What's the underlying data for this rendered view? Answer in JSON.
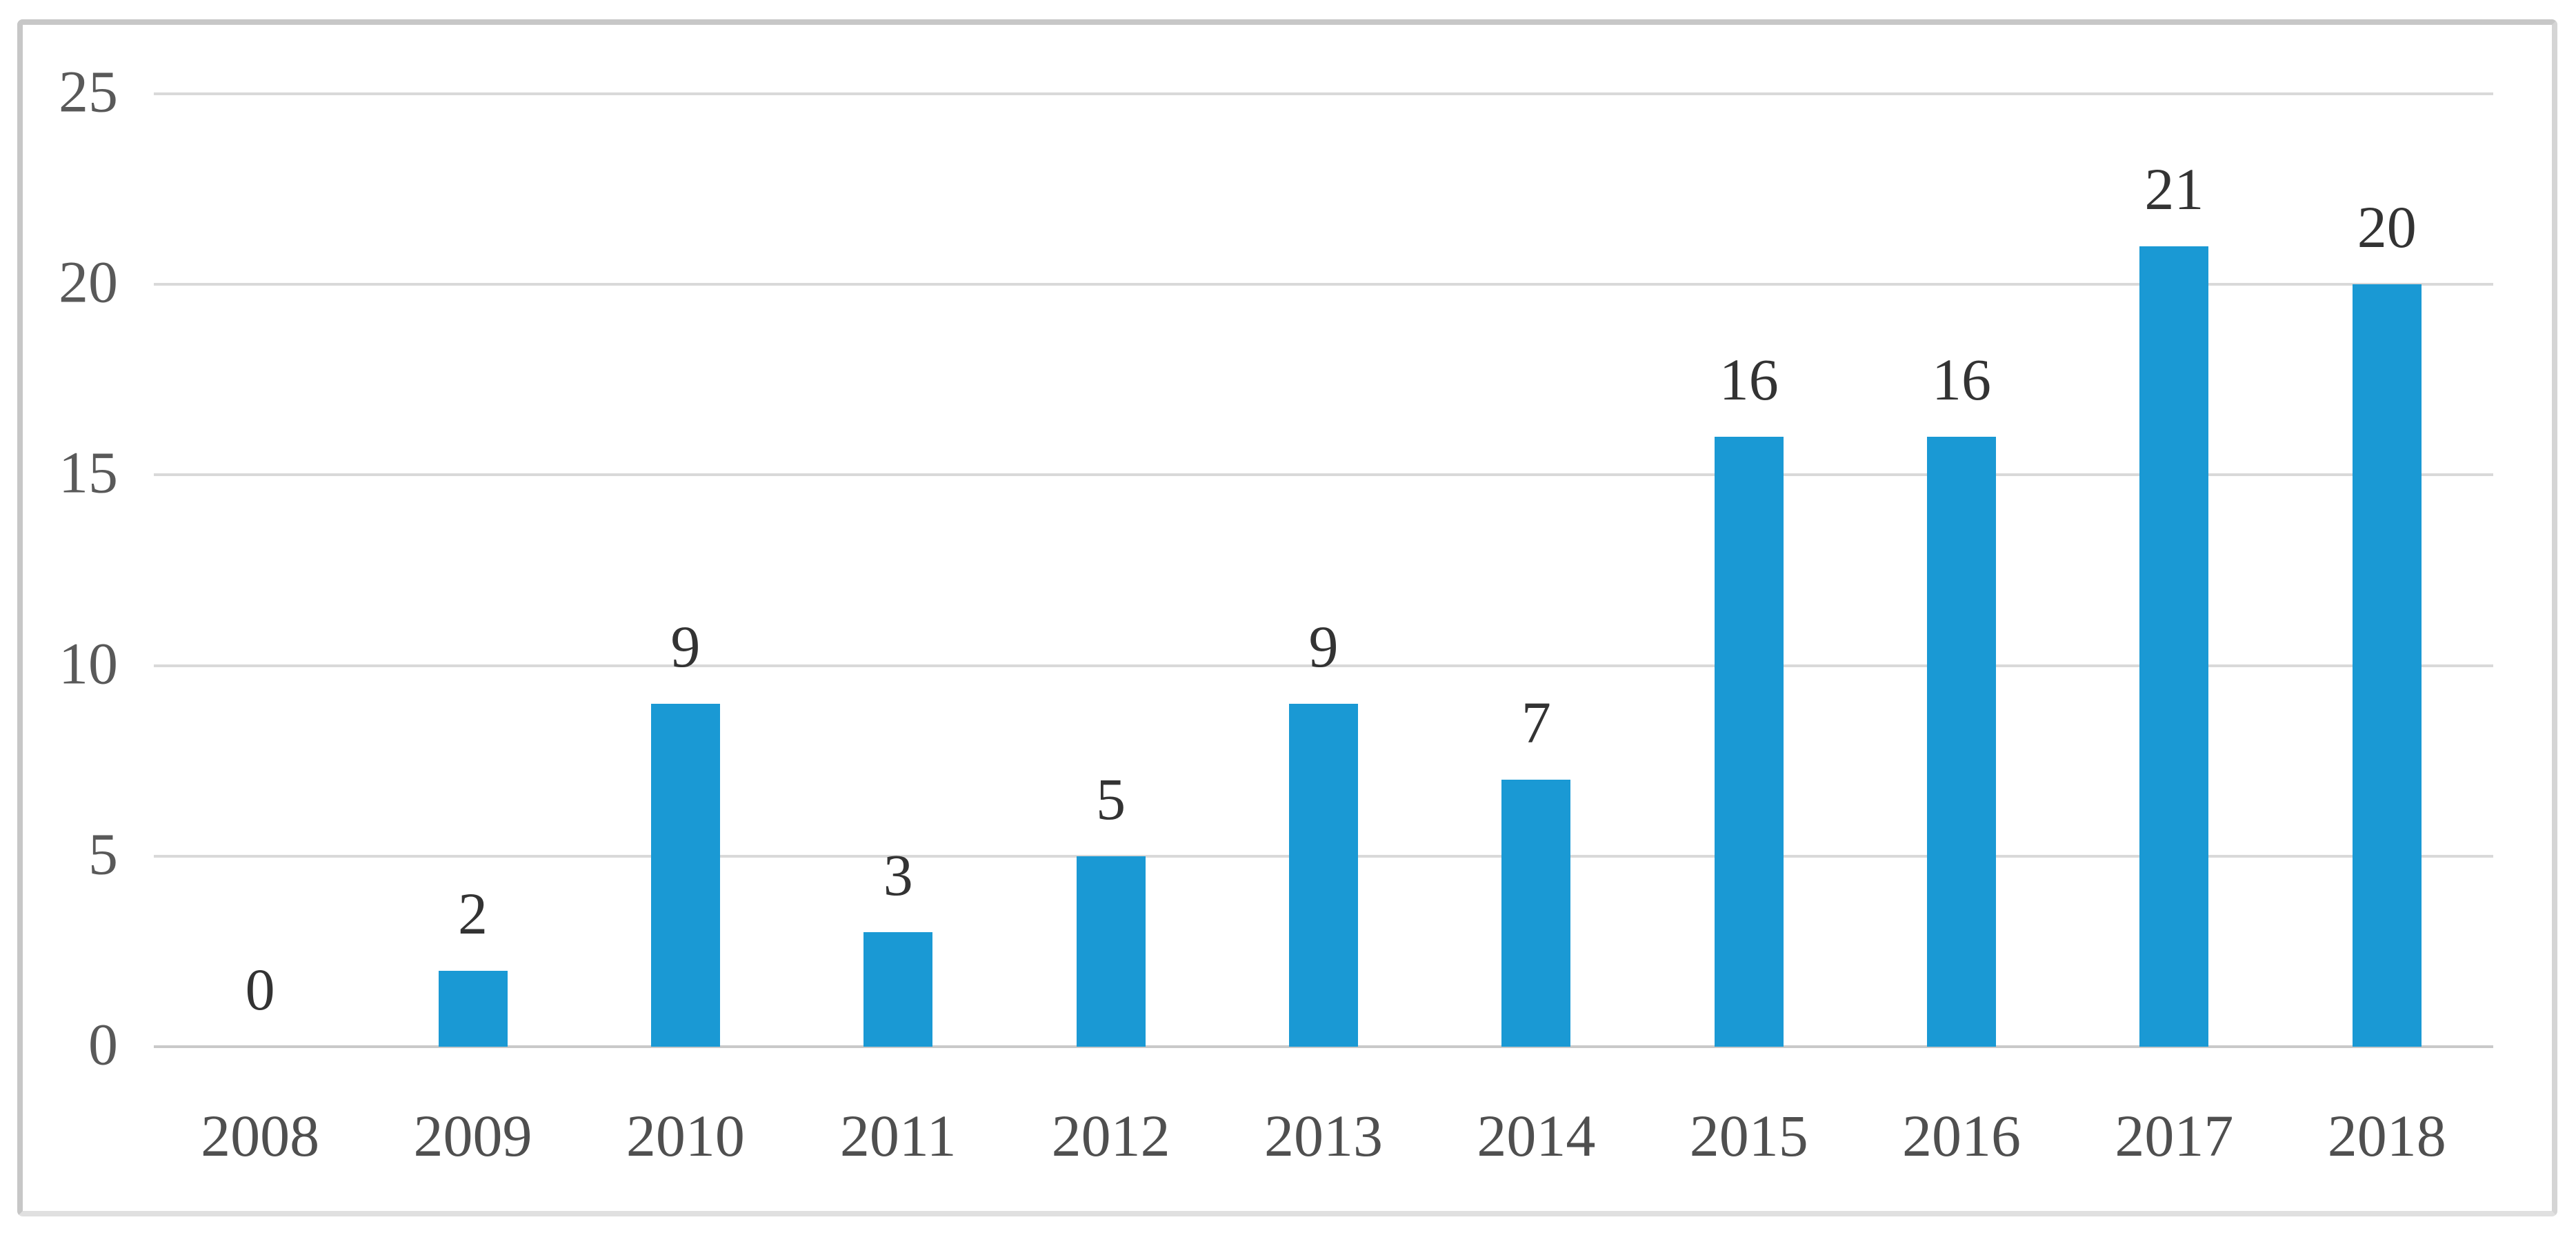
{
  "chart_data": {
    "type": "bar",
    "categories": [
      "2008",
      "2009",
      "2010",
      "2011",
      "2012",
      "2013",
      "2014",
      "2015",
      "2016",
      "2017",
      "2018"
    ],
    "values": [
      0,
      2,
      9,
      3,
      5,
      9,
      7,
      16,
      16,
      21,
      20
    ],
    "data_labels": [
      "0",
      "2",
      "9",
      "3",
      "5",
      "9",
      "7",
      "16",
      "16",
      "21",
      "20"
    ],
    "yticks": [
      "0",
      "5",
      "10",
      "15",
      "20",
      "25"
    ],
    "ylim": [
      0,
      25
    ],
    "grid": true,
    "legend": false,
    "title": "",
    "xlabel": "",
    "ylabel": "",
    "colors": {
      "bar": "#1a99d4",
      "gridline": "#d9d9d9",
      "baseline": "#c9c9c9",
      "frame_border": "#c7c7c7",
      "frame_border_right": "#d5d5d5",
      "frame_border_bottom": "#e0e0e0",
      "y_tick_text": "#595959",
      "x_tick_text": "#4f4f4f",
      "data_label_text": "#333333",
      "background": "#ffffff"
    }
  }
}
